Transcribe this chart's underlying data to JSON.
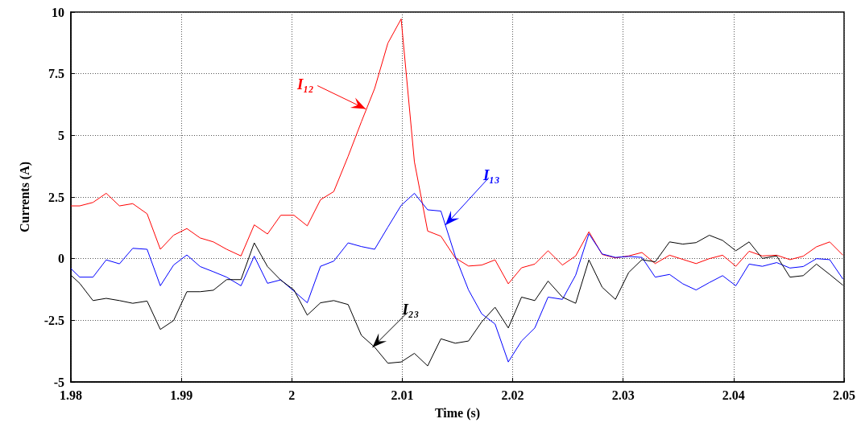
{
  "chart_data": {
    "type": "line",
    "xlabel": "Time (s)",
    "ylabel": "Currents (A)",
    "xlim": [
      1.98,
      2.05
    ],
    "xticks": [
      1.98,
      1.99,
      2,
      2.01,
      2.02,
      2.03,
      2.04,
      2.05
    ],
    "ylim": [
      -5,
      10
    ],
    "yticks": [
      -5,
      -2.5,
      0,
      2.5,
      5,
      7.5,
      10
    ],
    "grid": true,
    "marker": "none",
    "line_style": "solid",
    "x": [
      1.98,
      1.9808,
      1.982,
      1.9832,
      1.9844,
      1.9856,
      1.9869,
      1.9881,
      1.9893,
      1.9905,
      1.9917,
      1.9929,
      1.9941,
      1.9954,
      1.9966,
      1.9978,
      1.999,
      2.0002,
      2.0014,
      2.0026,
      2.0038,
      2.0051,
      2.0063,
      2.0075,
      2.0087,
      2.0099,
      2.0111,
      2.0123,
      2.0135,
      2.0148,
      2.016,
      2.0172,
      2.0184,
      2.0196,
      2.0208,
      2.022,
      2.0232,
      2.0245,
      2.0257,
      2.0269,
      2.0281,
      2.0293,
      2.0305,
      2.0317,
      2.0329,
      2.0342,
      2.0354,
      2.0366,
      2.0378,
      2.039,
      2.0402,
      2.0414,
      2.0426,
      2.0439,
      2.0451,
      2.0463,
      2.0475,
      2.0487,
      2.0499
    ],
    "series": [
      {
        "color": "#ff0000",
        "values": [
          2.14,
          2.14,
          2.28,
          2.65,
          2.14,
          2.23,
          1.82,
          0.38,
          0.95,
          1.22,
          0.84,
          0.68,
          0.38,
          0.11,
          1.37,
          1.0,
          1.76,
          1.76,
          1.33,
          2.39,
          2.72,
          4.15,
          5.55,
          6.9,
          8.74,
          9.72,
          3.93,
          1.12,
          0.91,
          0.03,
          -0.3,
          -0.26,
          -0.05,
          -1.02,
          -0.37,
          -0.22,
          0.32,
          -0.26,
          0.11,
          1.09,
          0.17,
          0.03,
          0.11,
          0.25,
          -0.2,
          0.14,
          -0.03,
          -0.2,
          0,
          0.14,
          -0.31,
          0.3,
          0.11,
          0.14,
          -0.04,
          0.1,
          0.48,
          0.68,
          0.14
        ]
      },
      {
        "color": "#0000ff",
        "values": [
          -0.4,
          -0.75,
          -0.75,
          -0.05,
          -0.21,
          0.42,
          0.38,
          -1.1,
          -0.26,
          0.15,
          -0.32,
          -0.53,
          -0.75,
          -1.1,
          0.1,
          -1.0,
          -0.86,
          -1.32,
          -1.79,
          -0.31,
          -0.1,
          0.64,
          0.49,
          0.38,
          1.28,
          2.16,
          2.65,
          1.98,
          1.93,
          0.1,
          -1.27,
          -2.24,
          -2.65,
          -4.19,
          -3.34,
          -2.81,
          -1.56,
          -1.65,
          -0.67,
          1.01,
          0.19,
          0.05,
          0.09,
          0.05,
          -0.75,
          -0.64,
          -1.02,
          -1.27,
          -0.97,
          -0.69,
          -1.1,
          -0.22,
          -0.31,
          -0.16,
          -0.38,
          -0.32,
          0,
          -0.04,
          -0.83
        ]
      },
      {
        "color": "#000000",
        "values": [
          -0.67,
          -1.0,
          -1.7,
          -1.61,
          -1.7,
          -1.81,
          -1.72,
          -2.87,
          -2.51,
          -1.34,
          -1.34,
          -1.28,
          -0.85,
          -0.85,
          0.64,
          -0.32,
          -0.87,
          -1.27,
          -2.29,
          -1.79,
          -1.7,
          -1.86,
          -3.11,
          -3.59,
          -4.24,
          -4.19,
          -3.84,
          -4.35,
          -3.25,
          -3.43,
          -3.34,
          -2.56,
          -1.97,
          -2.81,
          -1.56,
          -1.7,
          -0.91,
          -1.56,
          -1.81,
          -0.05,
          -1.16,
          -1.65,
          -0.56,
          -0.04,
          -0.13,
          0.68,
          0.59,
          0.65,
          0.95,
          0.74,
          0.32,
          0.68,
          0.01,
          0.11,
          -0.75,
          -0.69,
          -0.22,
          -0.64,
          -1.08
        ]
      }
    ],
    "annotations": [
      {
        "text": "I₁₂",
        "x": 2.0067,
        "y": 6.07
      },
      {
        "text": "I₁₃",
        "x": 2.0139,
        "y": 1.36
      },
      {
        "text": "I₂₃",
        "x": 2.0073,
        "y": -3.6
      }
    ]
  }
}
